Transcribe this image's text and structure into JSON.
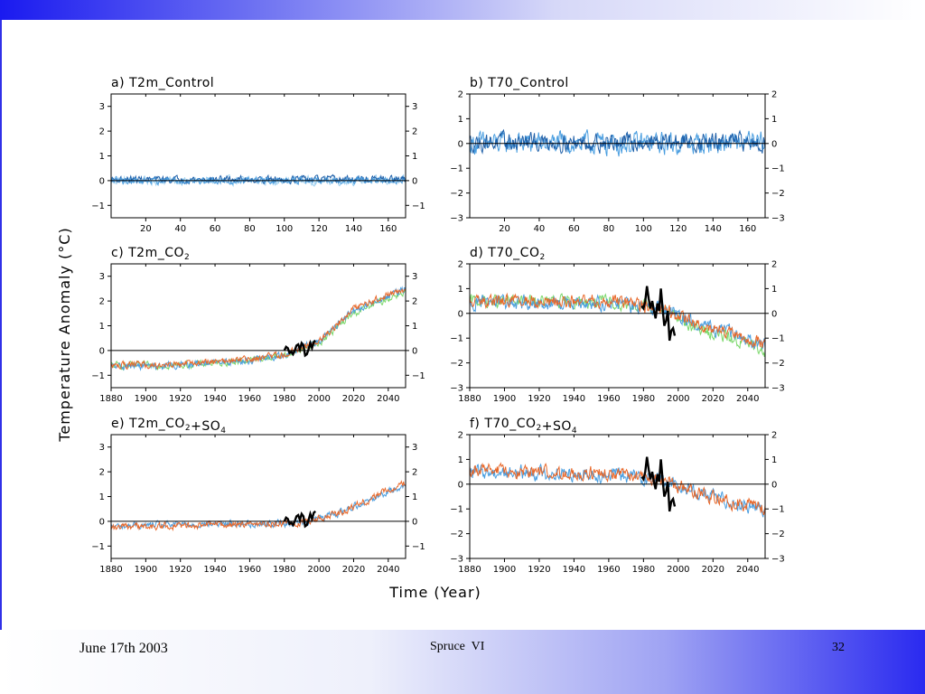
{
  "slide": {
    "footer_date": "June 17th 2003",
    "footer_title": "Spruce  VI",
    "page_number": "32",
    "colors": {
      "top_bar": "#1a1af0",
      "bottom_bar": "#2a2af0",
      "background": "#ffffff"
    }
  },
  "figure": {
    "y_axis_label": "Temperature Anomaly (°C)",
    "x_axis_label": "Time (Year)"
  },
  "chart_data": [
    {
      "id": "a",
      "type": "line",
      "title": "a) T2m_Control",
      "xlim": [
        0,
        170
      ],
      "ylim": [
        -1.5,
        3.5
      ],
      "xticks": [
        20,
        40,
        60,
        80,
        100,
        120,
        140,
        160
      ],
      "yticks": [
        -1,
        0,
        1,
        2,
        3
      ],
      "zero_line": true,
      "series": [
        {
          "color": "#9ccff0",
          "amp": 0.14,
          "trend": [
            [
              0,
              0
            ],
            [
              170,
              0
            ]
          ]
        },
        {
          "color": "#1e5fa8",
          "amp": 0.12,
          "trend": [
            [
              0,
              0.05
            ],
            [
              170,
              0.05
            ]
          ]
        },
        {
          "color": "#4a9ee0",
          "amp": 0.12,
          "trend": [
            [
              0,
              0
            ],
            [
              170,
              0
            ]
          ]
        }
      ]
    },
    {
      "id": "b",
      "type": "line",
      "title": "b) T70_Control",
      "xlim": [
        0,
        170
      ],
      "ylim": [
        -3,
        2
      ],
      "xticks": [
        20,
        40,
        60,
        80,
        100,
        120,
        140,
        160
      ],
      "yticks": [
        -3,
        -2,
        -1,
        0,
        1,
        2
      ],
      "zero_line": true,
      "series": [
        {
          "color": "#4a9ee0",
          "amp": 0.38,
          "trend": [
            [
              0,
              0
            ],
            [
              170,
              0
            ]
          ]
        },
        {
          "color": "#1e5fa8",
          "amp": 0.3,
          "trend": [
            [
              0,
              0.05
            ],
            [
              170,
              0.05
            ]
          ]
        }
      ]
    },
    {
      "id": "c",
      "type": "line",
      "title": "c) T2m_CO2",
      "xlim": [
        1880,
        2050
      ],
      "ylim": [
        -1.5,
        3.5
      ],
      "xticks": [
        1880,
        1900,
        1920,
        1940,
        1960,
        1980,
        2000,
        2020,
        2040
      ],
      "yticks": [
        -1,
        0,
        1,
        2,
        3
      ],
      "zero_line": true,
      "series": [
        {
          "color": "#7ad86a",
          "amp": 0.12,
          "trend": [
            [
              1880,
              -0.6
            ],
            [
              1920,
              -0.6
            ],
            [
              1960,
              -0.4
            ],
            [
              1980,
              -0.2
            ],
            [
              2000,
              0.3
            ],
            [
              2020,
              1.5
            ],
            [
              2050,
              2.4
            ]
          ]
        },
        {
          "color": "#4a9ee0",
          "amp": 0.12,
          "trend": [
            [
              1880,
              -0.65
            ],
            [
              1920,
              -0.6
            ],
            [
              1960,
              -0.4
            ],
            [
              1980,
              -0.2
            ],
            [
              2000,
              0.4
            ],
            [
              2020,
              1.6
            ],
            [
              2050,
              2.5
            ]
          ]
        },
        {
          "color": "#e8682a",
          "amp": 0.12,
          "trend": [
            [
              1880,
              -0.6
            ],
            [
              1920,
              -0.55
            ],
            [
              1960,
              -0.35
            ],
            [
              1980,
              -0.15
            ],
            [
              2000,
              0.4
            ],
            [
              2020,
              1.7
            ],
            [
              2050,
              2.5
            ]
          ]
        }
      ],
      "observed": [
        [
          1980,
          0.0
        ],
        [
          1981,
          0.15
        ],
        [
          1982,
          0.1
        ],
        [
          1983,
          -0.1
        ],
        [
          1984,
          -0.05
        ],
        [
          1985,
          -0.15
        ],
        [
          1986,
          0.0
        ],
        [
          1987,
          0.2
        ],
        [
          1988,
          0.25
        ],
        [
          1989,
          0.05
        ],
        [
          1990,
          0.3
        ],
        [
          1991,
          0.2
        ],
        [
          1992,
          -0.2
        ],
        [
          1993,
          -0.15
        ],
        [
          1994,
          0.05
        ],
        [
          1995,
          0.3
        ],
        [
          1996,
          0.1
        ],
        [
          1997,
          0.35
        ],
        [
          1998,
          0.4
        ]
      ]
    },
    {
      "id": "d",
      "type": "line",
      "title": "d) T70_CO2",
      "xlim": [
        1880,
        2050
      ],
      "ylim": [
        -3,
        2
      ],
      "xticks": [
        1880,
        1900,
        1920,
        1940,
        1960,
        1980,
        2000,
        2020,
        2040
      ],
      "yticks": [
        -3,
        -2,
        -1,
        0,
        1,
        2
      ],
      "zero_line": true,
      "series": [
        {
          "color": "#7ad86a",
          "amp": 0.22,
          "trend": [
            [
              1880,
              0.5
            ],
            [
              1960,
              0.45
            ],
            [
              1990,
              0.2
            ],
            [
              2010,
              -0.6
            ],
            [
              2030,
              -1.0
            ],
            [
              2050,
              -1.5
            ]
          ]
        },
        {
          "color": "#4a9ee0",
          "amp": 0.25,
          "trend": [
            [
              1880,
              0.45
            ],
            [
              1960,
              0.4
            ],
            [
              1990,
              0.2
            ],
            [
              2010,
              -0.4
            ],
            [
              2030,
              -0.8
            ],
            [
              2050,
              -1.3
            ]
          ]
        },
        {
          "color": "#e8682a",
          "amp": 0.22,
          "trend": [
            [
              1880,
              0.5
            ],
            [
              1960,
              0.5
            ],
            [
              1990,
              0.2
            ],
            [
              2010,
              -0.4
            ],
            [
              2030,
              -0.8
            ],
            [
              2050,
              -1.2
            ]
          ]
        }
      ],
      "observed": [
        [
          1979,
          0.3
        ],
        [
          1980,
          0.2
        ],
        [
          1981,
          0.5
        ],
        [
          1982,
          1.1
        ],
        [
          1983,
          0.6
        ],
        [
          1984,
          0.2
        ],
        [
          1985,
          0.5
        ],
        [
          1986,
          0.1
        ],
        [
          1987,
          -0.2
        ],
        [
          1988,
          0.4
        ],
        [
          1989,
          0.1
        ],
        [
          1990,
          1.0
        ],
        [
          1991,
          0.2
        ],
        [
          1992,
          -0.5
        ],
        [
          1993,
          -0.3
        ],
        [
          1994,
          0.1
        ],
        [
          1995,
          -1.1
        ],
        [
          1996,
          -0.7
        ],
        [
          1997,
          -0.6
        ],
        [
          1998,
          -0.9
        ]
      ]
    },
    {
      "id": "e",
      "type": "line",
      "title": "e) T2m_CO2+SO4",
      "xlim": [
        1880,
        2050
      ],
      "ylim": [
        -1.5,
        3.5
      ],
      "xticks": [
        1880,
        1900,
        1920,
        1940,
        1960,
        1980,
        2000,
        2020,
        2040
      ],
      "yticks": [
        -1,
        0,
        1,
        2,
        3
      ],
      "zero_line": true,
      "series": [
        {
          "color": "#4a9ee0",
          "amp": 0.12,
          "trend": [
            [
              1880,
              -0.2
            ],
            [
              1940,
              -0.1
            ],
            [
              1970,
              -0.1
            ],
            [
              1990,
              -0.05
            ],
            [
              2010,
              0.3
            ],
            [
              2030,
              0.9
            ],
            [
              2050,
              1.5
            ]
          ]
        },
        {
          "color": "#e8682a",
          "amp": 0.12,
          "trend": [
            [
              1880,
              -0.25
            ],
            [
              1940,
              -0.15
            ],
            [
              1970,
              -0.1
            ],
            [
              1990,
              -0.05
            ],
            [
              2010,
              0.3
            ],
            [
              2030,
              0.9
            ],
            [
              2050,
              1.6
            ]
          ]
        }
      ],
      "observed": [
        [
          1980,
          0.0
        ],
        [
          1981,
          0.15
        ],
        [
          1982,
          0.1
        ],
        [
          1983,
          -0.1
        ],
        [
          1984,
          -0.05
        ],
        [
          1985,
          -0.15
        ],
        [
          1986,
          0.0
        ],
        [
          1987,
          0.2
        ],
        [
          1988,
          0.25
        ],
        [
          1989,
          0.05
        ],
        [
          1990,
          0.3
        ],
        [
          1991,
          0.2
        ],
        [
          1992,
          -0.2
        ],
        [
          1993,
          -0.15
        ],
        [
          1994,
          0.05
        ],
        [
          1995,
          0.3
        ],
        [
          1996,
          0.1
        ],
        [
          1997,
          0.35
        ],
        [
          1998,
          0.4
        ]
      ]
    },
    {
      "id": "f",
      "type": "line",
      "title": "f) T70_CO2+SO4",
      "xlim": [
        1880,
        2050
      ],
      "ylim": [
        -3,
        2
      ],
      "xticks": [
        1880,
        1900,
        1920,
        1940,
        1960,
        1980,
        2000,
        2020,
        2040
      ],
      "yticks": [
        -3,
        -2,
        -1,
        0,
        1,
        2
      ],
      "zero_line": true,
      "series": [
        {
          "color": "#4a9ee0",
          "amp": 0.25,
          "trend": [
            [
              1880,
              0.5
            ],
            [
              1960,
              0.4
            ],
            [
              1990,
              0.2
            ],
            [
              2010,
              -0.3
            ],
            [
              2030,
              -0.7
            ],
            [
              2050,
              -1.0
            ]
          ]
        },
        {
          "color": "#e8682a",
          "amp": 0.22,
          "trend": [
            [
              1880,
              0.55
            ],
            [
              1960,
              0.45
            ],
            [
              1990,
              0.2
            ],
            [
              2010,
              -0.3
            ],
            [
              2030,
              -0.7
            ],
            [
              2050,
              -1.0
            ]
          ]
        }
      ],
      "observed": [
        [
          1979,
          0.3
        ],
        [
          1980,
          0.2
        ],
        [
          1981,
          0.5
        ],
        [
          1982,
          1.1
        ],
        [
          1983,
          0.6
        ],
        [
          1984,
          0.2
        ],
        [
          1985,
          0.5
        ],
        [
          1986,
          0.1
        ],
        [
          1987,
          -0.2
        ],
        [
          1988,
          0.4
        ],
        [
          1989,
          0.1
        ],
        [
          1990,
          1.0
        ],
        [
          1991,
          0.2
        ],
        [
          1992,
          -0.5
        ],
        [
          1993,
          -0.3
        ],
        [
          1994,
          0.1
        ],
        [
          1995,
          -1.1
        ],
        [
          1996,
          -0.7
        ],
        [
          1997,
          -0.6
        ],
        [
          1998,
          -0.9
        ]
      ]
    }
  ]
}
